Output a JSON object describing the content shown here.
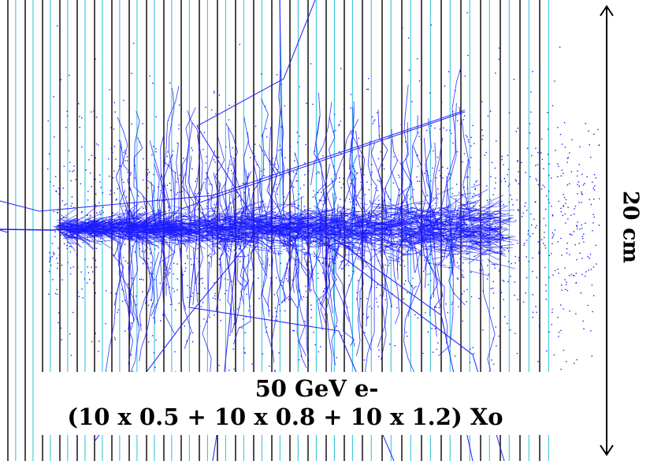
{
  "image": {
    "description_labels": {
      "beam": "50 GeV e-",
      "layers": "(10 x 0.5 + 10 x 0.8 + 10 x 1.2) Xo",
      "scale": "20 cm"
    },
    "colors": {
      "tracks": "#1a1aff",
      "dark_layer_lines": "#000000",
      "light_layer_lines": "#22c0d8",
      "background": "#ffffff"
    }
  }
}
